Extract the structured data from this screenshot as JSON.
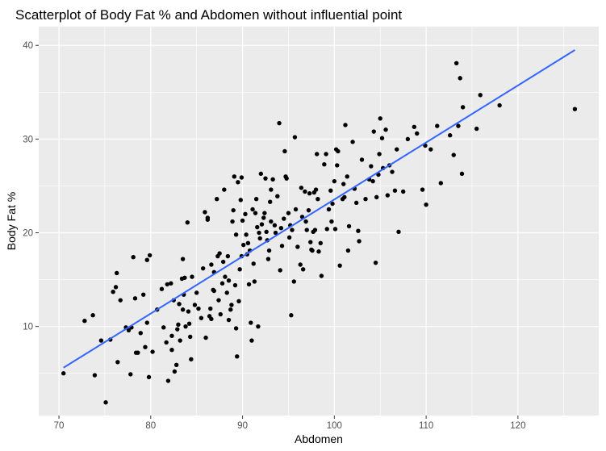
{
  "chart_data": {
    "type": "scatter",
    "title": "Scatterplot of Body Fat % and Abdomen without influential point",
    "xlabel": "Abdomen",
    "ylabel": "Body Fat %",
    "xlim": [
      67.8,
      128.8
    ],
    "ylim": [
      0.5,
      42.0
    ],
    "x_ticks": [
      70,
      80,
      90,
      100,
      110,
      120
    ],
    "y_ticks": [
      10,
      20,
      30,
      40
    ],
    "x_tick_labels": [
      "70",
      "80",
      "90",
      "100",
      "110",
      "120"
    ],
    "y_tick_labels": [
      "10",
      "20",
      "30",
      "40"
    ],
    "grid": true,
    "background": "#ebebeb",
    "point_color": "#000000",
    "line_color": "#3366ff",
    "fit_line": {
      "x": [
        70.5,
        126.2
      ],
      "y": [
        5.6,
        39.5
      ]
    },
    "points": [
      [
        70.5,
        5.0
      ],
      [
        72.8,
        10.6
      ],
      [
        73.7,
        11.2
      ],
      [
        73.9,
        4.8
      ],
      [
        74.6,
        8.5
      ],
      [
        75.1,
        1.9
      ],
      [
        75.6,
        8.6
      ],
      [
        75.9,
        13.7
      ],
      [
        76.2,
        14.2
      ],
      [
        76.3,
        15.7
      ],
      [
        76.4,
        6.2
      ],
      [
        76.7,
        12.8
      ],
      [
        77.3,
        9.9
      ],
      [
        77.6,
        9.6
      ],
      [
        77.9,
        9.9
      ],
      [
        77.8,
        4.9
      ],
      [
        78.1,
        17.4
      ],
      [
        78.3,
        13.0
      ],
      [
        78.4,
        7.2
      ],
      [
        78.6,
        7.2
      ],
      [
        78.9,
        9.3
      ],
      [
        79.2,
        13.4
      ],
      [
        79.4,
        7.8
      ],
      [
        79.6,
        10.4
      ],
      [
        79.6,
        17.1
      ],
      [
        79.9,
        17.6
      ],
      [
        79.8,
        4.6
      ],
      [
        80.2,
        7.3
      ],
      [
        80.7,
        11.8
      ],
      [
        81.2,
        14.0
      ],
      [
        81.4,
        9.9
      ],
      [
        81.7,
        8.3
      ],
      [
        81.8,
        14.5
      ],
      [
        81.9,
        4.2
      ],
      [
        82.2,
        14.6
      ],
      [
        82.3,
        9.0
      ],
      [
        82.3,
        7.5
      ],
      [
        82.5,
        12.8
      ],
      [
        82.6,
        5.2
      ],
      [
        82.8,
        5.9
      ],
      [
        82.9,
        9.7
      ],
      [
        83.0,
        10.2
      ],
      [
        83.1,
        12.4
      ],
      [
        83.2,
        8.5
      ],
      [
        83.4,
        15.1
      ],
      [
        83.5,
        17.2
      ],
      [
        83.6,
        13.4
      ],
      [
        83.5,
        11.8
      ],
      [
        83.7,
        15.2
      ],
      [
        83.8,
        10.0
      ],
      [
        84.0,
        21.1
      ],
      [
        84.1,
        11.6
      ],
      [
        84.3,
        8.9
      ],
      [
        84.2,
        10.3
      ],
      [
        84.4,
        6.5
      ],
      [
        84.5,
        15.3
      ],
      [
        84.8,
        12.3
      ],
      [
        85.0,
        13.6
      ],
      [
        85.2,
        11.9
      ],
      [
        85.5,
        10.9
      ],
      [
        85.7,
        16.2
      ],
      [
        85.9,
        22.2
      ],
      [
        86.0,
        8.8
      ],
      [
        86.2,
        21.6
      ],
      [
        86.2,
        21.4
      ],
      [
        86.4,
        11.1
      ],
      [
        86.5,
        11.9
      ],
      [
        86.6,
        16.6
      ],
      [
        86.6,
        10.8
      ],
      [
        86.8,
        13.9
      ],
      [
        86.9,
        15.8
      ],
      [
        86.9,
        13.8
      ],
      [
        87.2,
        23.6
      ],
      [
        87.3,
        17.5
      ],
      [
        87.4,
        12.8
      ],
      [
        87.5,
        17.8
      ],
      [
        87.6,
        11.3
      ],
      [
        87.8,
        14.6
      ],
      [
        87.9,
        16.9
      ],
      [
        88.0,
        24.6
      ],
      [
        88.1,
        15.3
      ],
      [
        88.3,
        13.6
      ],
      [
        88.4,
        17.5
      ],
      [
        88.5,
        10.7
      ],
      [
        88.5,
        14.9
      ],
      [
        88.7,
        11.8
      ],
      [
        88.8,
        12.3
      ],
      [
        88.9,
        21.2
      ],
      [
        89.0,
        22.4
      ],
      [
        89.1,
        26.0
      ],
      [
        89.2,
        14.4
      ],
      [
        89.3,
        19.8
      ],
      [
        89.3,
        9.8
      ],
      [
        89.4,
        6.8
      ],
      [
        89.5,
        25.4
      ],
      [
        89.6,
        12.7
      ],
      [
        89.7,
        16.1
      ],
      [
        89.8,
        23.5
      ],
      [
        89.9,
        25.9
      ],
      [
        89.9,
        17.5
      ],
      [
        90.0,
        21.3
      ],
      [
        90.1,
        18.7
      ],
      [
        90.3,
        22.0
      ],
      [
        90.4,
        19.8
      ],
      [
        90.5,
        17.7
      ],
      [
        90.6,
        18.9
      ],
      [
        90.7,
        14.5
      ],
      [
        90.8,
        18.1
      ],
      [
        90.9,
        10.4
      ],
      [
        91.0,
        8.5
      ],
      [
        91.1,
        22.5
      ],
      [
        91.2,
        16.7
      ],
      [
        91.3,
        14.8
      ],
      [
        91.4,
        22.1
      ],
      [
        91.5,
        23.6
      ],
      [
        91.6,
        20.6
      ],
      [
        91.7,
        10.0
      ],
      [
        91.8,
        20.0
      ],
      [
        91.9,
        19.4
      ],
      [
        92.0,
        26.3
      ],
      [
        92.1,
        20.9
      ],
      [
        92.3,
        21.6
      ],
      [
        92.4,
        22.1
      ],
      [
        92.5,
        25.8
      ],
      [
        92.6,
        20.1
      ],
      [
        92.7,
        19.2
      ],
      [
        92.8,
        17.2
      ],
      [
        92.9,
        18.1
      ],
      [
        93.0,
        23.3
      ],
      [
        93.1,
        24.6
      ],
      [
        93.1,
        21.2
      ],
      [
        93.3,
        25.7
      ],
      [
        93.5,
        20.8
      ],
      [
        93.6,
        20.0
      ],
      [
        93.8,
        23.9
      ],
      [
        94.0,
        31.7
      ],
      [
        94.1,
        16.0
      ],
      [
        94.2,
        20.5
      ],
      [
        94.3,
        18.6
      ],
      [
        94.5,
        21.5
      ],
      [
        94.6,
        28.7
      ],
      [
        94.7,
        26.0
      ],
      [
        94.8,
        25.8
      ],
      [
        95.0,
        22.1
      ],
      [
        95.1,
        19.5
      ],
      [
        95.2,
        20.8
      ],
      [
        95.3,
        11.2
      ],
      [
        95.4,
        20.3
      ],
      [
        95.6,
        14.8
      ],
      [
        95.7,
        30.2
      ],
      [
        95.8,
        22.5
      ],
      [
        96.0,
        18.5
      ],
      [
        96.3,
        16.6
      ],
      [
        96.4,
        24.8
      ],
      [
        96.5,
        21.7
      ],
      [
        96.6,
        16.1
      ],
      [
        96.8,
        24.4
      ],
      [
        96.9,
        21.2
      ],
      [
        97.0,
        20.3
      ],
      [
        97.2,
        22.4
      ],
      [
        97.3,
        24.2
      ],
      [
        97.4,
        19.0
      ],
      [
        97.5,
        18.2
      ],
      [
        97.6,
        18.1
      ],
      [
        97.7,
        20.1
      ],
      [
        97.8,
        24.3
      ],
      [
        97.9,
        20.3
      ],
      [
        98.0,
        24.6
      ],
      [
        98.1,
        28.4
      ],
      [
        98.2,
        23.6
      ],
      [
        98.3,
        18.0
      ],
      [
        98.5,
        18.9
      ],
      [
        98.6,
        15.4
      ],
      [
        98.9,
        27.3
      ],
      [
        99.1,
        28.4
      ],
      [
        99.2,
        20.4
      ],
      [
        99.4,
        22.5
      ],
      [
        99.6,
        24.5
      ],
      [
        99.7,
        21.2
      ],
      [
        99.8,
        23.1
      ],
      [
        100.0,
        25.5
      ],
      [
        100.1,
        20.4
      ],
      [
        100.2,
        28.9
      ],
      [
        100.3,
        27.2
      ],
      [
        100.4,
        28.7
      ],
      [
        100.6,
        16.5
      ],
      [
        100.9,
        23.6
      ],
      [
        101.0,
        25.2
      ],
      [
        101.1,
        23.8
      ],
      [
        101.2,
        31.5
      ],
      [
        101.4,
        26.0
      ],
      [
        101.6,
        20.7
      ],
      [
        101.5,
        18.1
      ],
      [
        102.0,
        29.7
      ],
      [
        102.2,
        24.7
      ],
      [
        102.4,
        23.2
      ],
      [
        102.6,
        20.2
      ],
      [
        102.7,
        19.1
      ],
      [
        103.0,
        27.8
      ],
      [
        103.4,
        23.6
      ],
      [
        103.8,
        25.7
      ],
      [
        104.0,
        27.1
      ],
      [
        104.2,
        25.5
      ],
      [
        104.3,
        30.8
      ],
      [
        104.5,
        16.8
      ],
      [
        104.6,
        23.8
      ],
      [
        104.8,
        26.2
      ],
      [
        104.9,
        28.4
      ],
      [
        105.0,
        32.2
      ],
      [
        105.2,
        30.1
      ],
      [
        105.3,
        26.9
      ],
      [
        105.6,
        31.0
      ],
      [
        105.8,
        24.0
      ],
      [
        106.0,
        27.2
      ],
      [
        106.3,
        26.5
      ],
      [
        106.6,
        24.5
      ],
      [
        106.8,
        28.9
      ],
      [
        107.0,
        20.1
      ],
      [
        107.5,
        24.4
      ],
      [
        108.0,
        30.0
      ],
      [
        108.7,
        31.3
      ],
      [
        109.0,
        30.6
      ],
      [
        109.6,
        24.6
      ],
      [
        109.9,
        29.3
      ],
      [
        110.0,
        23.0
      ],
      [
        110.5,
        28.9
      ],
      [
        111.2,
        31.4
      ],
      [
        111.6,
        25.3
      ],
      [
        112.6,
        30.4
      ],
      [
        113.0,
        28.3
      ],
      [
        113.3,
        38.1
      ],
      [
        113.5,
        31.4
      ],
      [
        113.7,
        36.5
      ],
      [
        113.9,
        26.3
      ],
      [
        114.0,
        33.4
      ],
      [
        115.5,
        31.1
      ],
      [
        115.9,
        34.7
      ],
      [
        118.0,
        33.6
      ],
      [
        126.2,
        33.2
      ]
    ]
  }
}
